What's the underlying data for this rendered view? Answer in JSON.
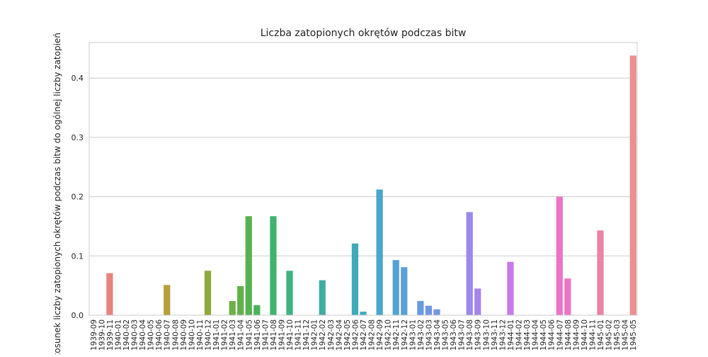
{
  "chart_data": {
    "type": "bar",
    "title": "Liczba zatopionych okrętów podczas bitw",
    "xlabel": "",
    "ylabel": "Stosunek liczby zatopionych okrętów podczas bitw do ogólnej liczby zatopień",
    "ylim": [
      0,
      0.46
    ],
    "yticks": [
      0.0,
      0.1,
      0.2,
      0.3,
      0.4
    ],
    "ytick_labels": [
      "0.0",
      "0.1",
      "0.2",
      "0.3",
      "0.4"
    ],
    "grid": true,
    "categories": [
      "1939-09",
      "1939-10",
      "1939-11",
      "1940-01",
      "1940-02",
      "1940-03",
      "1940-04",
      "1940-05",
      "1940-06",
      "1940-07",
      "1940-08",
      "1940-09",
      "1940-10",
      "1940-11",
      "1940-12",
      "1941-01",
      "1941-02",
      "1941-03",
      "1941-04",
      "1941-05",
      "1941-06",
      "1941-07",
      "1941-08",
      "1941-09",
      "1941-10",
      "1941-11",
      "1941-12",
      "1942-01",
      "1942-02",
      "1942-03",
      "1942-04",
      "1942-05",
      "1942-06",
      "1942-07",
      "1942-08",
      "1942-09",
      "1942-10",
      "1942-11",
      "1942-12",
      "1943-01",
      "1943-02",
      "1943-03",
      "1943-04",
      "1943-05",
      "1943-06",
      "1943-07",
      "1943-08",
      "1943-09",
      "1943-10",
      "1943-11",
      "1943-12",
      "1944-01",
      "1944-02",
      "1944-03",
      "1944-04",
      "1944-05",
      "1944-06",
      "1944-07",
      "1944-08",
      "1944-09",
      "1944-10",
      "1944-11",
      "1945-01",
      "1945-02",
      "1945-03",
      "1945-04",
      "1945-05"
    ],
    "values": [
      0,
      0,
      0.071,
      0,
      0,
      0,
      0,
      0,
      0,
      0.051,
      0,
      0,
      0,
      0,
      0.075,
      0,
      0,
      0.024,
      0.049,
      0.167,
      0.017,
      0,
      0.167,
      0,
      0.075,
      0,
      0,
      0,
      0.059,
      0,
      0,
      0,
      0.121,
      0.006,
      0,
      0.212,
      0,
      0.093,
      0.081,
      0,
      0.024,
      0.016,
      0.01,
      0,
      0,
      0,
      0.174,
      0.045,
      0,
      0,
      0,
      0.09,
      0,
      0,
      0,
      0,
      0,
      0.2,
      0.062,
      0,
      0,
      0,
      0.143,
      0,
      0,
      0,
      0.438
    ],
    "colors": [
      "#e8837e",
      "#e8837e",
      "#e8837e",
      "#e0865c",
      "#dc8b4a",
      "#d38f3c",
      "#c9963a",
      "#c39a3a",
      "#bc9d3a",
      "#b59f3a",
      "#aea13a",
      "#a6a33a",
      "#9ea53a",
      "#96a73a",
      "#8da93a",
      "#84ab3e",
      "#79ad42",
      "#6eaf46",
      "#62b04c",
      "#56b153",
      "#4bb25c",
      "#44b365",
      "#41b36f",
      "#3fb378",
      "#3fb281",
      "#3fb18a",
      "#3fb092",
      "#3faf9a",
      "#3faea1",
      "#3fada8",
      "#3facaf",
      "#3fabb5",
      "#3faabb",
      "#41a9c1",
      "#44a8c6",
      "#48a6cb",
      "#4da4d0",
      "#53a2d4",
      "#5aa0d8",
      "#619ddc",
      "#689ae0",
      "#7097e3",
      "#7894e6",
      "#8191e9",
      "#8a8eeb",
      "#938bec",
      "#9c88ed",
      "#a585ed",
      "#ae82ec",
      "#b77feb",
      "#bf7ce9",
      "#c779e7",
      "#cf77e4",
      "#d675e0",
      "#dd74dc",
      "#e273d6",
      "#e673d0",
      "#e974ca",
      "#eb76c3",
      "#ec78bd",
      "#ed7bb6",
      "#ed7eaf",
      "#ed82a9",
      "#ec85a3",
      "#ec899d",
      "#eb8c97",
      "#ea8f92"
    ]
  }
}
